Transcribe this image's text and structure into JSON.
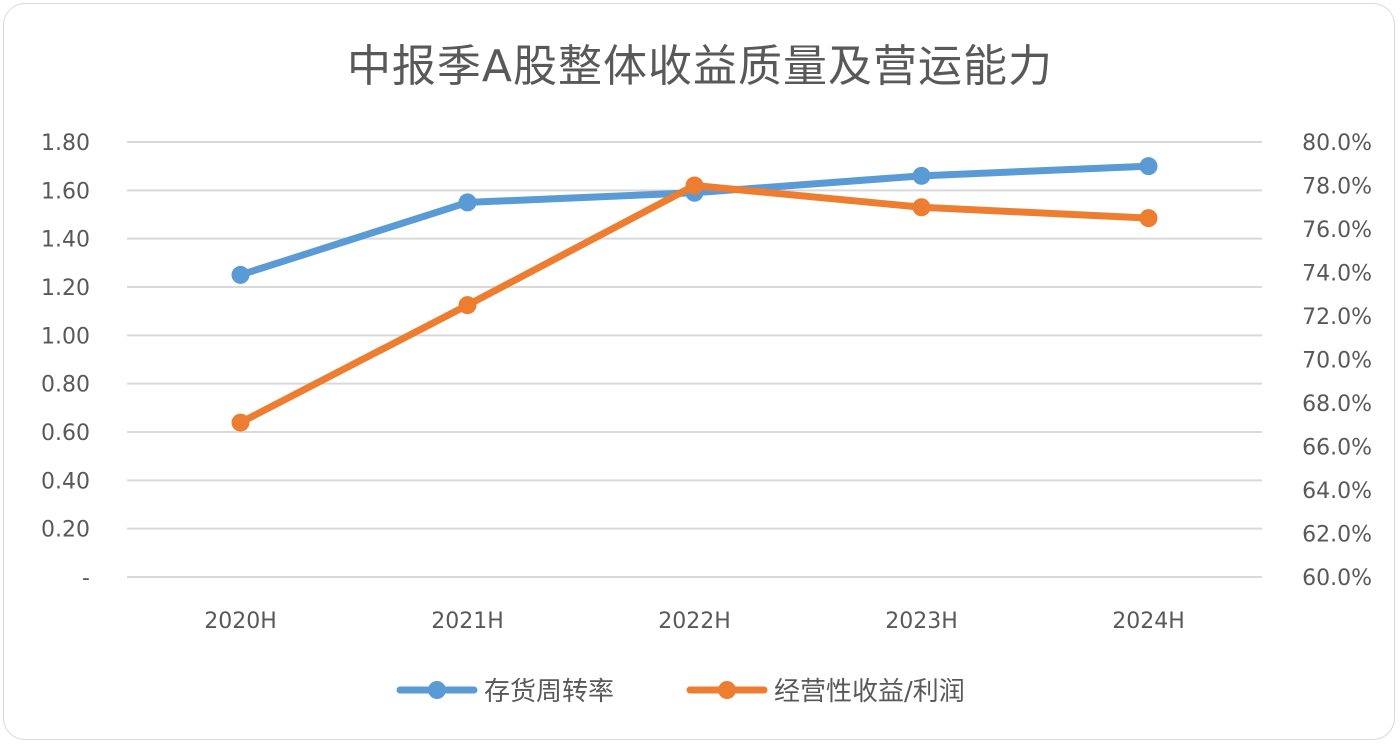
{
  "chart_data": {
    "type": "line",
    "title": "中报季A股整体收益质量及营运能力",
    "categories": [
      "2020H",
      "2021H",
      "2022H",
      "2023H",
      "2024H"
    ],
    "series": [
      {
        "name": "存货周转率",
        "axis": "left",
        "color": "#5b9bd5",
        "values": [
          1.25,
          1.55,
          1.59,
          1.66,
          1.7
        ]
      },
      {
        "name": "经营性收益/利润",
        "axis": "right",
        "color": "#ed7d31",
        "values": [
          0.671,
          0.725,
          0.78,
          0.77,
          0.765
        ]
      }
    ],
    "y_left": {
      "ylim": [
        0,
        1.8
      ],
      "ticks": [
        0,
        0.2,
        0.4,
        0.6,
        0.8,
        1.0,
        1.2,
        1.4,
        1.6,
        1.8
      ],
      "tick_labels": [
        "-",
        "0.20",
        "0.40",
        "0.60",
        "0.80",
        "1.00",
        "1.20",
        "1.40",
        "1.60",
        "1.80"
      ]
    },
    "y_right": {
      "ylim": [
        0.6,
        0.8
      ],
      "ticks": [
        0.6,
        0.62,
        0.64,
        0.66,
        0.68,
        0.7,
        0.72,
        0.74,
        0.76,
        0.78,
        0.8
      ],
      "tick_labels": [
        "60.0%",
        "62.0%",
        "64.0%",
        "66.0%",
        "68.0%",
        "70.0%",
        "72.0%",
        "74.0%",
        "76.0%",
        "78.0%",
        "80.0%"
      ]
    },
    "grid": true,
    "legend": "bottom",
    "xlabel": "",
    "ylabel": ""
  }
}
